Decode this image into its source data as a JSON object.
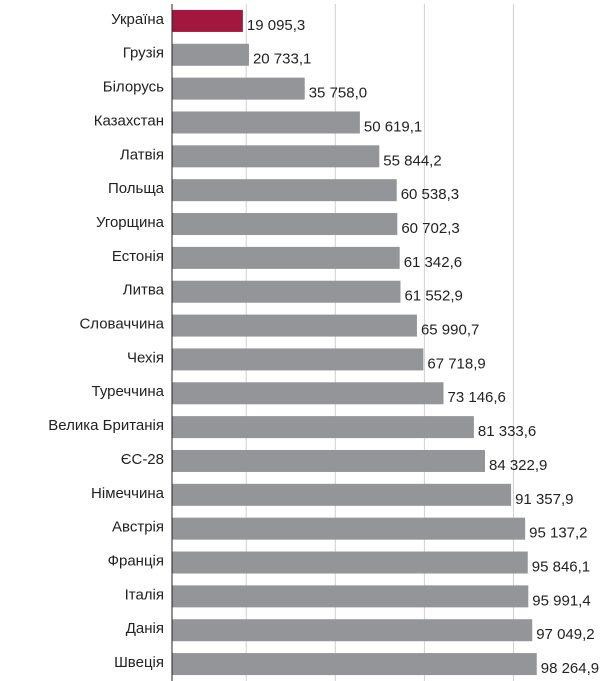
{
  "chart_data": {
    "type": "bar",
    "orientation": "horizontal",
    "categories": [
      "Україна",
      "Грузія",
      "Білорусь",
      "Казахстан",
      "Латвія",
      "Польща",
      "Угорщина",
      "Естонія",
      "Литва",
      "Словаччина",
      "Чехія",
      "Туреччина",
      "Велика Британія",
      "ЄС-28",
      "Німеччина",
      "Австрія",
      "Франція",
      "Італія",
      "Данія",
      "Швеція"
    ],
    "values": [
      19095.3,
      20733.1,
      35758.0,
      50619.1,
      55844.2,
      60538.3,
      60702.3,
      61342.6,
      61552.9,
      65990.7,
      67718.9,
      73146.6,
      81333.6,
      84322.9,
      91357.9,
      95137.2,
      95846.1,
      95991.4,
      97049.2,
      98264.9
    ],
    "value_labels": [
      "19 095,3",
      "20 733,1",
      "35 758,0",
      "50 619,1",
      "55 844,2",
      "60 538,3",
      "60 702,3",
      "61 342,6",
      "61 552,9",
      "65 990,7",
      "67 718,9",
      "73 146,6",
      "81 333,6",
      "84 322,9",
      "91 357,9",
      "95 137,2",
      "95 846,1",
      "95 991,4",
      "97 049,2",
      "98 264,9"
    ],
    "colors": [
      "#a3173f",
      "#939598",
      "#939598",
      "#939598",
      "#939598",
      "#939598",
      "#939598",
      "#939598",
      "#939598",
      "#939598",
      "#939598",
      "#939598",
      "#939598",
      "#939598",
      "#939598",
      "#939598",
      "#939598",
      "#939598",
      "#939598",
      "#939598"
    ],
    "xlim": [
      0,
      118000
    ],
    "xticks": [
      20000,
      44000,
      68000,
      92000
    ],
    "grid": true
  }
}
